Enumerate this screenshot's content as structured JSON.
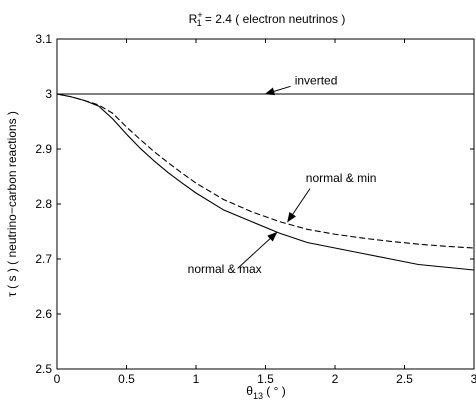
{
  "chart_data": {
    "type": "line",
    "title": {
      "prefix": "R",
      "superscript": "+",
      "subscript": "1",
      "suffix": " = 2.4 ( electron neutrinos )"
    },
    "xlabel": {
      "base": "θ",
      "subscript": "13",
      "suffix": " ( ° )"
    },
    "ylabel": "τ ( s ) ( neutrino−carbon reactions )",
    "xlim": [
      0,
      3
    ],
    "ylim": [
      2.5,
      3.1
    ],
    "x_ticks": [
      0,
      0.5,
      1,
      1.5,
      2,
      2.5,
      3
    ],
    "x_tick_labels": [
      "0",
      "0.5",
      "1",
      "1.5",
      "2",
      "2.5",
      "3"
    ],
    "y_ticks": [
      2.5,
      2.6,
      2.7,
      2.8,
      2.9,
      3.0,
      3.1
    ],
    "y_tick_labels": [
      "2.5",
      "2.6",
      "2.7",
      "2.8",
      "2.9",
      "3",
      "3.1"
    ],
    "grid": false,
    "series": [
      {
        "key": "inverted",
        "style": "solid",
        "color": "#000000",
        "x": [
          0,
          3
        ],
        "y": [
          3.0,
          3.0
        ]
      },
      {
        "key": "normal-min",
        "style": "dashed",
        "color": "#000000",
        "x": [
          0,
          0.1,
          0.2,
          0.3,
          0.4,
          0.5,
          0.6,
          0.7,
          0.8,
          0.9,
          1.0,
          1.2,
          1.4,
          1.6,
          1.8,
          2.0,
          2.2,
          2.4,
          2.6,
          2.8,
          3.0
        ],
        "y": [
          3.0,
          2.995,
          2.988,
          2.98,
          2.965,
          2.94,
          2.917,
          2.895,
          2.875,
          2.856,
          2.838,
          2.808,
          2.786,
          2.768,
          2.754,
          2.745,
          2.738,
          2.732,
          2.727,
          2.723,
          2.72
        ]
      },
      {
        "key": "normal-max",
        "style": "solid",
        "color": "#000000",
        "x": [
          0,
          0.1,
          0.2,
          0.3,
          0.4,
          0.5,
          0.6,
          0.7,
          0.8,
          0.9,
          1.0,
          1.2,
          1.4,
          1.6,
          1.8,
          2.0,
          2.2,
          2.4,
          2.6,
          2.8,
          3.0
        ],
        "y": [
          3.0,
          2.995,
          2.988,
          2.978,
          2.955,
          2.927,
          2.901,
          2.878,
          2.857,
          2.838,
          2.82,
          2.789,
          2.768,
          2.747,
          2.73,
          2.72,
          2.71,
          2.7,
          2.69,
          2.685,
          2.68
        ]
      }
    ],
    "annotations": [
      {
        "text": "inverted",
        "text_x": 1.71,
        "text_y": 3.017,
        "arrow_from": [
          1.68,
          3.014
        ],
        "arrow_to": [
          1.5,
          3.0
        ]
      },
      {
        "text": "normal & min",
        "text_x": 1.79,
        "text_y": 2.84,
        "arrow_from": [
          1.82,
          2.828
        ],
        "arrow_to": [
          1.66,
          2.768
        ]
      },
      {
        "text": "normal & max",
        "text_x": 0.94,
        "text_y": 2.675,
        "arrow_from": [
          1.3,
          2.683
        ],
        "arrow_to": [
          1.58,
          2.748
        ]
      }
    ]
  }
}
